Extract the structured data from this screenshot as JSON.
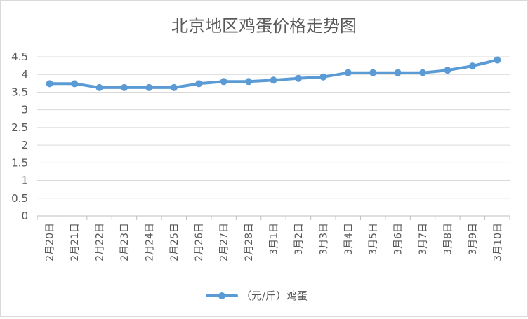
{
  "colors": {
    "series": "#5b9bd5",
    "text": "#595959",
    "grid": "#d9d9d9"
  },
  "chart_data": {
    "type": "line",
    "title": "北京地区鸡蛋价格走势图",
    "xlabel": "",
    "ylabel": "",
    "ylim": [
      0,
      4.5
    ],
    "ytick_step": 0.5,
    "yticks": [
      "0",
      "0.5",
      "1",
      "1.5",
      "2",
      "2.5",
      "3",
      "3.5",
      "4",
      "4.5"
    ],
    "grid": true,
    "legend_position": "bottom",
    "categories": [
      "2月20日",
      "2月21日",
      "2月22日",
      "2月23日",
      "2月24日",
      "2月25日",
      "2月26日",
      "2月27日",
      "2月28日",
      "3月1日",
      "3月2日",
      "3月3日",
      "3月4日",
      "3月5日",
      "3月6日",
      "3月7日",
      "3月8日",
      "3月9日",
      "3月10日"
    ],
    "series": [
      {
        "name": "（元/斤）鸡蛋",
        "values": [
          3.74,
          3.74,
          3.63,
          3.63,
          3.63,
          3.63,
          3.74,
          3.8,
          3.8,
          3.84,
          3.89,
          3.93,
          4.05,
          4.05,
          4.05,
          4.05,
          4.12,
          4.24,
          4.41
        ]
      }
    ]
  }
}
